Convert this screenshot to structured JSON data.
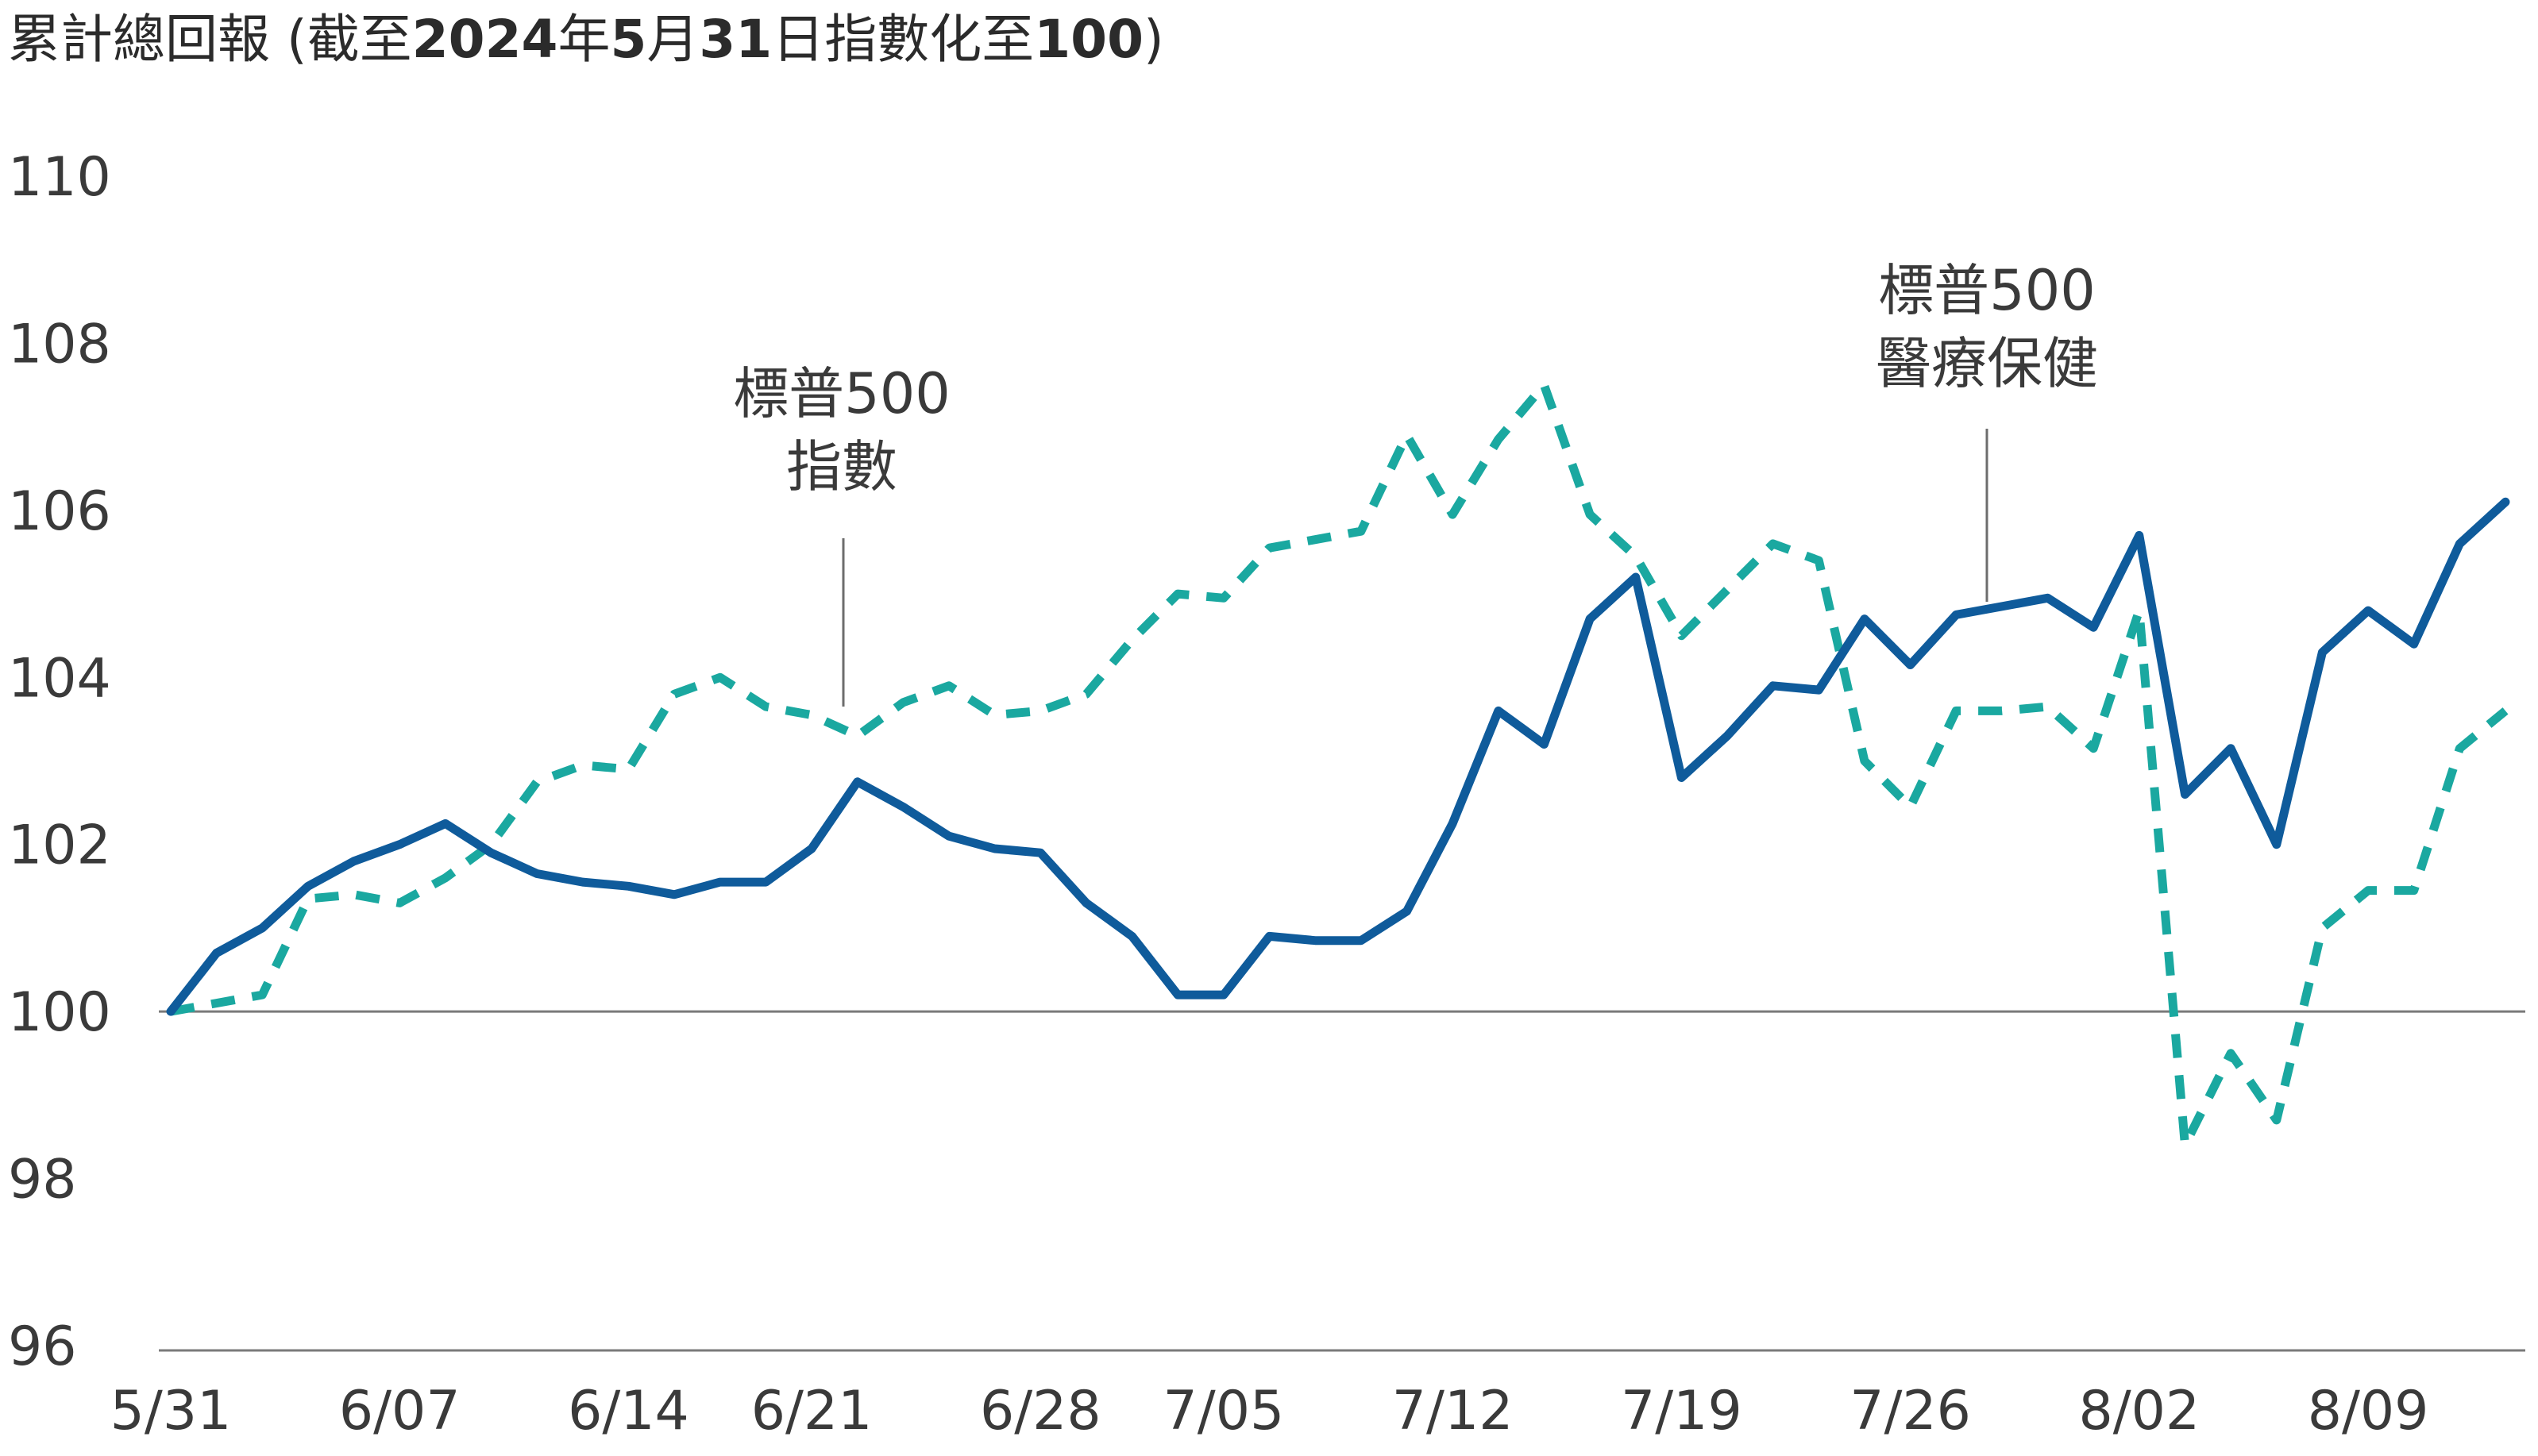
{
  "title": {
    "part1": "累計總回報 (截至",
    "part2": "2024",
    "part3": "年",
    "part4": "5",
    "part5": "月",
    "part6": "31",
    "part7": "日指數化至",
    "part8": "100",
    "part9": ")"
  },
  "colors": {
    "sp500_health_care": "#0f5b9b",
    "sp500_index": "#1aa8a0",
    "axis": "#7a7a7a",
    "annotation_line": "#6d6d6d"
  },
  "annotations": [
    {
      "lines": [
        "標普500",
        "指數"
      ],
      "series": "S&P 500 Index"
    },
    {
      "lines": [
        "標普500",
        "醫療保健"
      ],
      "series": "S&P 500 Health Care"
    }
  ],
  "chart_data": {
    "type": "line",
    "title": "累計總回報 (截至2024年5月31日指數化至100)",
    "xlabel": "",
    "ylabel": "",
    "ylim": [
      96,
      110
    ],
    "yticks": [
      96,
      98,
      100,
      102,
      104,
      106,
      108,
      110
    ],
    "xticks": [
      "5/31",
      "6/07",
      "6/14",
      "6/21",
      "6/28",
      "7/05",
      "7/12",
      "7/19",
      "7/26",
      "8/02",
      "8/09"
    ],
    "reference_line": 100,
    "x": [
      "5/31",
      "6/03",
      "6/04",
      "6/05",
      "6/06",
      "6/07",
      "6/10",
      "6/11",
      "6/12",
      "6/13",
      "6/14",
      "6/17",
      "6/18",
      "6/20",
      "6/21",
      "6/24",
      "6/25",
      "6/26",
      "6/27",
      "6/28",
      "7/01",
      "7/02",
      "7/03",
      "7/05",
      "7/08",
      "7/09",
      "7/10",
      "7/11",
      "7/12",
      "7/15",
      "7/16",
      "7/17",
      "7/18",
      "7/19",
      "7/22",
      "7/23",
      "7/24",
      "7/25",
      "7/26",
      "7/29",
      "7/30",
      "7/31",
      "8/01",
      "8/02",
      "8/05",
      "8/06",
      "8/07",
      "8/08",
      "8/09",
      "8/12",
      "8/13",
      "8/14"
    ],
    "series": [
      {
        "name": "標普500醫療保健",
        "style": "solid",
        "values": [
          100.0,
          100.7,
          101.0,
          101.5,
          101.8,
          102.0,
          102.25,
          101.9,
          101.65,
          101.55,
          101.5,
          101.4,
          101.55,
          101.55,
          101.95,
          102.75,
          102.45,
          102.1,
          101.95,
          101.9,
          101.3,
          100.9,
          100.2,
          100.2,
          100.9,
          100.85,
          100.85,
          101.2,
          102.25,
          103.6,
          103.2,
          104.7,
          105.2,
          102.8,
          103.3,
          103.9,
          103.85,
          104.7,
          104.15,
          104.75,
          104.85,
          104.95,
          104.6,
          105.7,
          102.6,
          103.15,
          102.0,
          104.3,
          104.8,
          104.4,
          105.6,
          106.1
        ]
      },
      {
        "name": "標普500指數",
        "style": "dashed",
        "values": [
          100.0,
          100.1,
          100.2,
          101.35,
          101.4,
          101.3,
          101.6,
          102.0,
          102.75,
          102.95,
          102.9,
          103.8,
          104.0,
          103.65,
          103.55,
          103.3,
          103.7,
          103.9,
          103.55,
          103.6,
          103.8,
          104.45,
          105.0,
          104.95,
          105.55,
          105.65,
          105.75,
          106.9,
          105.95,
          106.85,
          107.5,
          105.95,
          105.45,
          104.5,
          105.05,
          105.6,
          105.4,
          103.0,
          102.45,
          103.6,
          103.6,
          103.65,
          103.15,
          104.8,
          98.4,
          99.5,
          98.7,
          101.0,
          101.45,
          101.45,
          103.15,
          103.6
        ]
      }
    ]
  }
}
